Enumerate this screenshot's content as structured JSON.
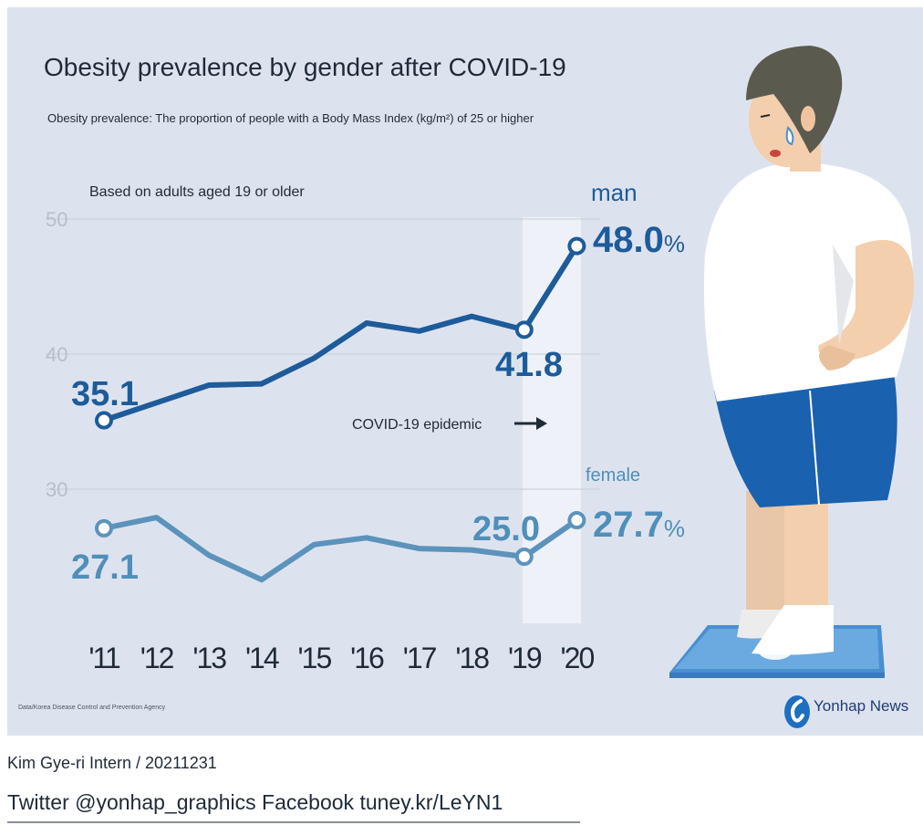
{
  "title": "Obesity prevalence by gender after COVID-19",
  "subtitle": "Obesity prevalence: The proportion of people with a Body Mass Index (kg/m²) of 25 or higher",
  "note": "Based on adults aged 19 or older",
  "source": "Data/Korea Disease Control and Prevention Agency",
  "logo_text": "Yonhap News",
  "byline": "Kim Gye-ri Intern / 20211231",
  "social": "Twitter @yonhap_graphics Facebook tuney.kr/LeYN1",
  "annotation": "COVID-19 epidemic",
  "labels": {
    "man": "man",
    "female": "female",
    "man_start": "35.1",
    "man_2019": "41.8",
    "man_end": "48.0",
    "female_start": "27.1",
    "female_2019": "25.0",
    "female_end": "27.7",
    "percent": "%"
  },
  "colors": {
    "background": "#dde3ee",
    "man": "#1d5b9a",
    "female": "#5b93bb",
    "highlight": "#eef1f7"
  },
  "chart_data": {
    "type": "line",
    "title": "Obesity prevalence by gender after COVID-19",
    "categories": [
      "'11",
      "'12",
      "'13",
      "'14",
      "'15",
      "'16",
      "'17",
      "'18",
      "'19",
      "'20"
    ],
    "yticks": [
      "30",
      "40",
      "50"
    ],
    "ylim": [
      20,
      50
    ],
    "grid": true,
    "highlight_range": [
      "'19",
      "'20"
    ],
    "series": [
      {
        "name": "man",
        "values": [
          35.1,
          36.4,
          37.7,
          37.8,
          39.7,
          42.3,
          41.7,
          42.8,
          41.8,
          48.0
        ]
      },
      {
        "name": "female",
        "values": [
          27.1,
          27.9,
          25.1,
          23.3,
          25.9,
          26.4,
          25.6,
          25.5,
          25.0,
          27.7
        ]
      }
    ]
  }
}
